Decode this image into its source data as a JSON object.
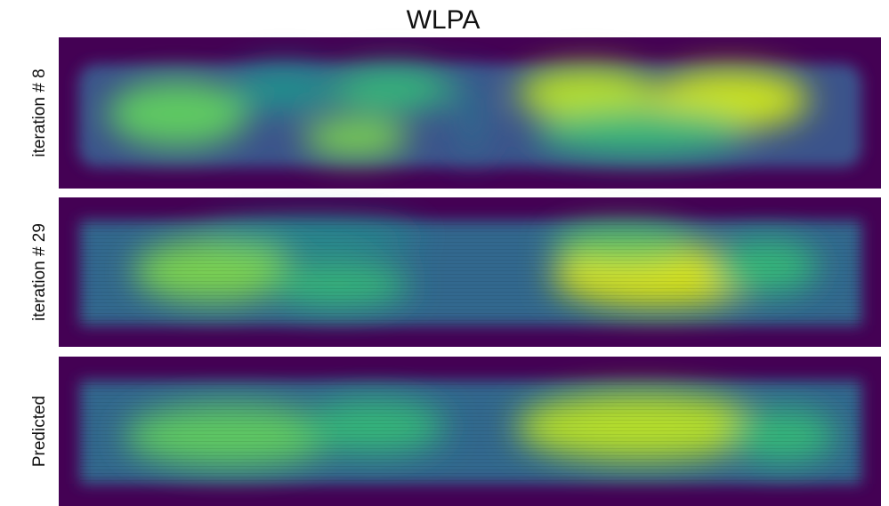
{
  "title": "WLPA",
  "panels": [
    {
      "label": "iteration # 8"
    },
    {
      "label": "iteration # 29"
    },
    {
      "label": "Predicted"
    }
  ]
}
